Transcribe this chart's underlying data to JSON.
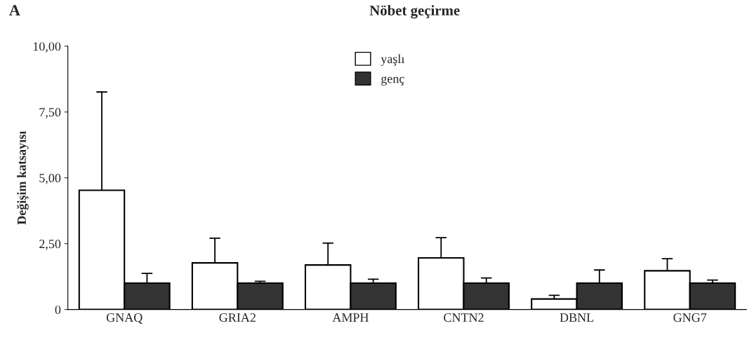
{
  "chart_data": {
    "type": "bar",
    "title": "Nöbet geçirme",
    "ylabel": "Değişim katsayısı",
    "annotations": [
      "A"
    ],
    "categories": [
      "GNAQ",
      "GRIA2",
      "AMPH",
      "CNTN2",
      "DBNL",
      "GNG7"
    ],
    "series": [
      {
        "name": "yaşlı",
        "color": "#ffffff",
        "values": [
          4.53,
          1.77,
          1.69,
          1.96,
          0.4,
          1.47
        ],
        "errors": [
          [
            4.53,
            8.26
          ],
          [
            1.77,
            2.71
          ],
          [
            1.69,
            2.52
          ],
          [
            1.96,
            2.73
          ],
          [
            0.4,
            0.54
          ],
          [
            1.47,
            1.93
          ]
        ]
      },
      {
        "name": "genç",
        "color": "#333333",
        "values": [
          1.0,
          1.0,
          1.0,
          1.0,
          1.0,
          1.0
        ],
        "errors": [
          [
            1.0,
            1.37
          ],
          [
            1.0,
            1.07
          ],
          [
            1.0,
            1.15
          ],
          [
            1.0,
            1.2
          ],
          [
            1.0,
            1.5
          ],
          [
            1.0,
            1.12
          ]
        ]
      }
    ],
    "ylim": [
      0,
      10
    ],
    "yticks": [
      {
        "value": 0,
        "label": "0"
      },
      {
        "value": 2.5,
        "label": "2,50"
      },
      {
        "value": 5,
        "label": "5,00"
      },
      {
        "value": 7.5,
        "label": "7,50"
      },
      {
        "value": 10,
        "label": "10,00"
      }
    ],
    "legend": "top",
    "grid": false
  }
}
